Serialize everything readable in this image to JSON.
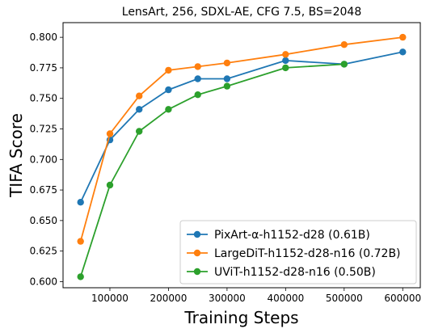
{
  "chart_data": {
    "type": "line",
    "title": "LensArt, 256, SDXL-AE, CFG 7.5, BS=2048",
    "xlabel": "Training Steps",
    "ylabel": "TIFA Score",
    "xlim": [
      20000,
      630000
    ],
    "ylim": [
      0.595,
      0.812
    ],
    "xticks": [
      100000,
      200000,
      300000,
      400000,
      500000,
      600000
    ],
    "xtick_labels": [
      "100000",
      "200000",
      "300000",
      "400000",
      "500000",
      "600000"
    ],
    "yticks": [
      0.6,
      0.625,
      0.65,
      0.675,
      0.7,
      0.725,
      0.75,
      0.775,
      0.8
    ],
    "ytick_labels": [
      "0.600",
      "0.625",
      "0.650",
      "0.675",
      "0.700",
      "0.725",
      "0.750",
      "0.775",
      "0.800"
    ],
    "grid": false,
    "legend_position": "bottom-right",
    "x": [
      50000,
      100000,
      150000,
      200000,
      250000,
      300000,
      400000,
      500000,
      600000
    ],
    "series": [
      {
        "name": "PixArt-α-h1152-d28 (0.61B)",
        "color": "#1f77b4",
        "values": [
          0.665,
          0.716,
          0.741,
          0.757,
          0.766,
          0.766,
          0.781,
          0.778,
          0.788
        ]
      },
      {
        "name": "LargeDiT-h1152-d28-n16 (0.72B)",
        "color": "#ff7f0e",
        "values": [
          0.633,
          0.721,
          0.752,
          0.773,
          0.776,
          0.779,
          0.786,
          0.794,
          0.8
        ]
      },
      {
        "name": "UViT-h1152-d28-n16 (0.50B)",
        "color": "#2ca02c",
        "values": [
          0.604,
          0.679,
          0.723,
          0.741,
          0.753,
          0.76,
          0.775,
          0.778,
          null
        ]
      }
    ]
  }
}
